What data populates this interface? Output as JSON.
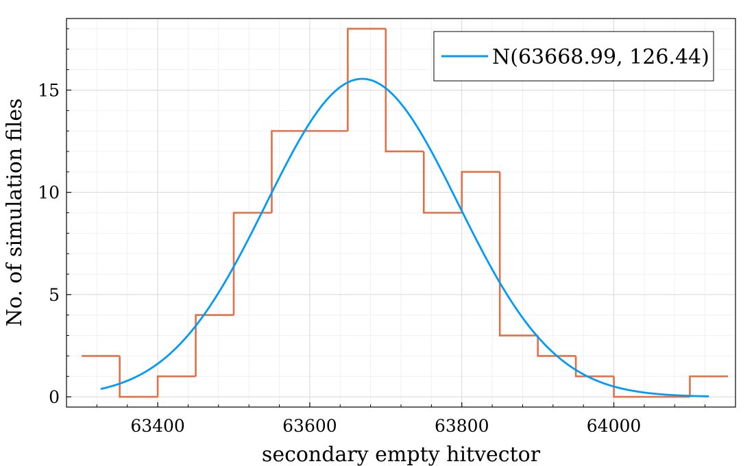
{
  "chart_data": {
    "type": "histogram",
    "xlabel": "secondary empty hitvector",
    "ylabel": "No. of simulation files",
    "xlim": [
      63280,
      64160
    ],
    "ylim": [
      -0.5,
      18.5
    ],
    "x_ticks": [
      63400,
      63600,
      63800,
      64000
    ],
    "x_tick_labels": [
      "63400",
      "63600",
      "63800",
      "64000"
    ],
    "y_ticks": [
      0,
      5,
      10,
      15
    ],
    "y_tick_labels": [
      "0",
      "5",
      "10",
      "15"
    ],
    "grid": true,
    "legend_position": "top-right",
    "histogram": {
      "bin_edges": [
        63300,
        63350,
        63400,
        63450,
        63500,
        63550,
        63600,
        63650,
        63700,
        63750,
        63800,
        63850,
        63900,
        63950,
        64000,
        64050,
        64100,
        64150
      ],
      "counts": [
        2,
        0,
        1,
        4,
        9,
        13,
        13,
        18,
        12,
        9,
        11,
        3,
        2,
        1,
        0,
        0,
        1
      ],
      "color": "#e26f46"
    },
    "series": [
      {
        "name": "N(63668.99, 126.44)",
        "type": "line",
        "distribution": "normal",
        "mean": 63668.99,
        "std": 126.44,
        "x_range": [
          63325,
          64125
        ],
        "peak_value": 15.55,
        "color": "#009af9"
      }
    ]
  }
}
